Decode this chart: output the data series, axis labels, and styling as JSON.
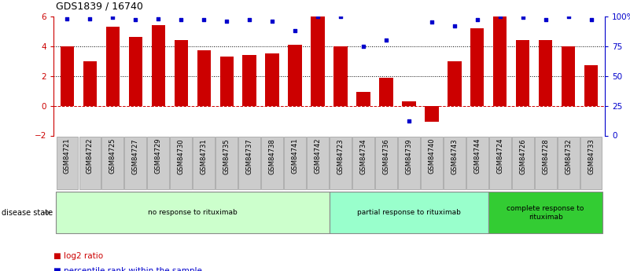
{
  "title": "GDS1839 / 16740",
  "samples": [
    "GSM84721",
    "GSM84722",
    "GSM84725",
    "GSM84727",
    "GSM84729",
    "GSM84730",
    "GSM84731",
    "GSM84735",
    "GSM84737",
    "GSM84738",
    "GSM84741",
    "GSM84742",
    "GSM84723",
    "GSM84734",
    "GSM84736",
    "GSM84739",
    "GSM84740",
    "GSM84743",
    "GSM84744",
    "GSM84724",
    "GSM84726",
    "GSM84728",
    "GSM84732",
    "GSM84733"
  ],
  "log2_ratio": [
    4.0,
    3.0,
    5.3,
    4.6,
    5.4,
    4.4,
    3.7,
    3.3,
    3.4,
    3.5,
    4.1,
    6.0,
    4.0,
    0.9,
    1.85,
    0.3,
    -1.1,
    3.0,
    5.2,
    6.0,
    4.4,
    4.4,
    4.0,
    2.7
  ],
  "percentile": [
    98,
    98,
    99,
    97,
    98,
    97,
    97,
    96,
    97,
    96,
    88,
    100,
    100,
    75,
    80,
    12,
    95,
    92,
    97,
    100,
    99,
    97,
    100,
    97
  ],
  "groups": [
    {
      "label": "no response to rituximab",
      "start": 0,
      "end": 12,
      "color": "#ccffcc"
    },
    {
      "label": "partial response to rituximab",
      "start": 12,
      "end": 19,
      "color": "#99ffcc"
    },
    {
      "label": "complete response to\nrituximab",
      "start": 19,
      "end": 24,
      "color": "#33cc33"
    }
  ],
  "bar_color": "#cc0000",
  "dot_color": "#0000cc",
  "ylim_left": [
    -2,
    6
  ],
  "ylim_right": [
    0,
    100
  ],
  "yticks_left": [
    -2,
    0,
    2,
    4,
    6
  ],
  "yticks_right": [
    0,
    25,
    50,
    75,
    100
  ],
  "ytick_labels_right": [
    "0",
    "25",
    "50",
    "75",
    "100%"
  ],
  "legend_items": [
    {
      "color": "#cc0000",
      "label": "log2 ratio"
    },
    {
      "color": "#0000cc",
      "label": "percentile rank within the sample"
    }
  ],
  "bar_width": 0.6,
  "disease_state_label": "disease state"
}
